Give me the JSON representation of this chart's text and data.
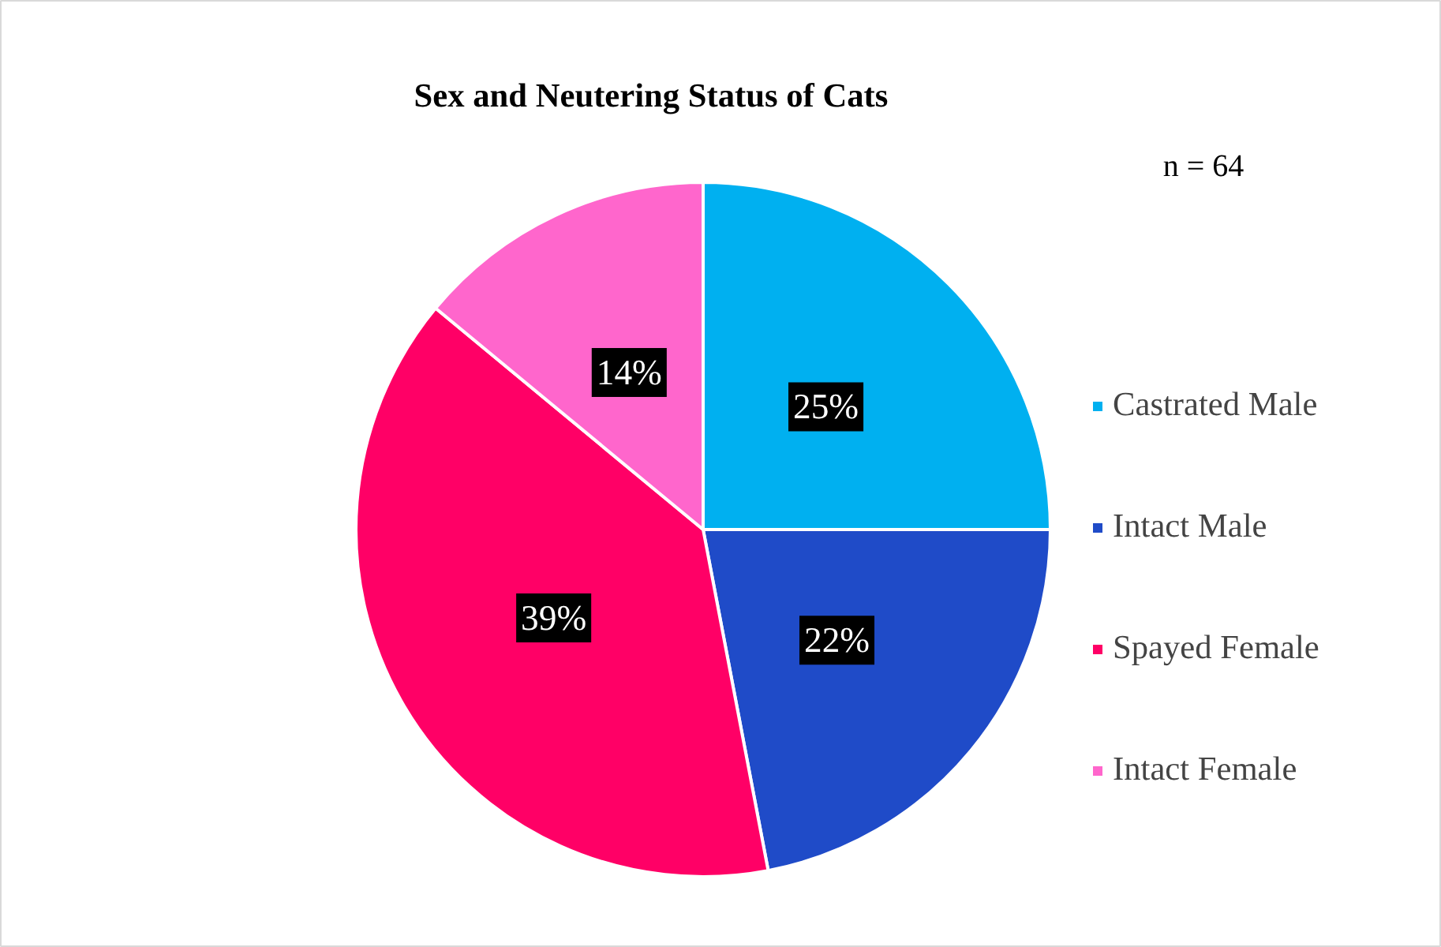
{
  "chart_data": {
    "type": "pie",
    "title": "Sex and Neutering Status of Cats",
    "categories": [
      "Castrated Male",
      "Intact Male",
      "Spayed Female",
      "Intact Female"
    ],
    "values": [
      25,
      22,
      39,
      14
    ],
    "colors": [
      "#00b0f0",
      "#1f4bc8",
      "#ff0066",
      "#ff66cc"
    ],
    "value_labels": [
      "25%",
      "22%",
      "39%",
      "14%"
    ],
    "annotations": [
      "n = 64"
    ],
    "legend": "right"
  }
}
